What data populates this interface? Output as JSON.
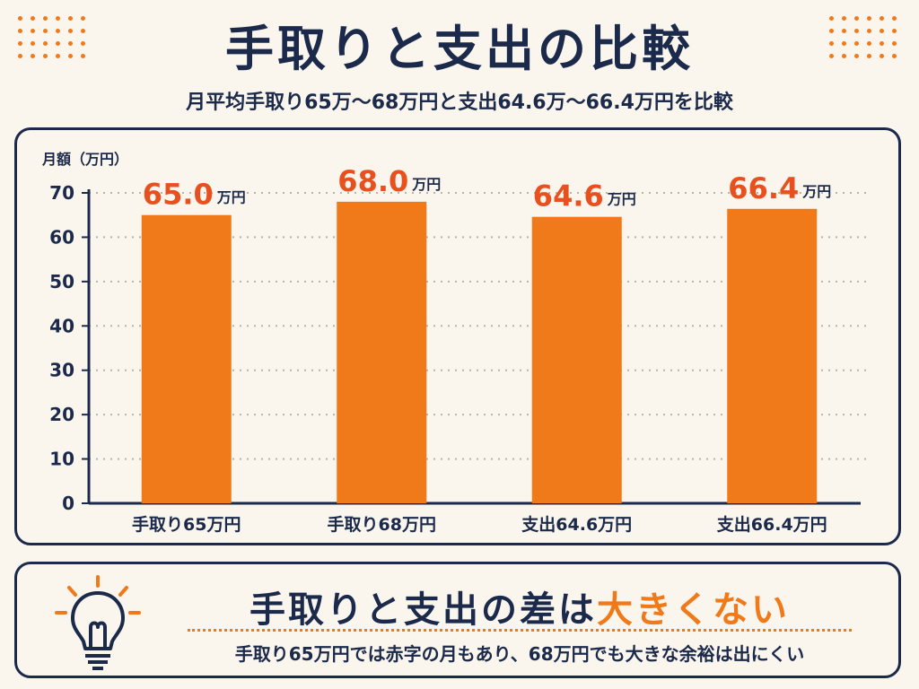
{
  "header": {
    "title": "手取りと支出の比較",
    "subtitle": "月平均手取り65万〜68万円と支出64.6万〜66.4万円を比較"
  },
  "colors": {
    "bar": "#f07a1a",
    "label": "#e8501e",
    "navy": "#1b2a4a",
    "background": "#faf6ee"
  },
  "chart_data": {
    "type": "bar",
    "ylabel": "月額（万円）",
    "ylim": [
      0,
      70
    ],
    "yticks": [
      0,
      10,
      20,
      30,
      40,
      50,
      60,
      70
    ],
    "grid": true,
    "categories": [
      "手取り65万円",
      "手取り68万円",
      "支出64.6万円",
      "支出66.4万円"
    ],
    "values": [
      65.0,
      68.0,
      64.6,
      66.4
    ],
    "value_labels": [
      "65.0",
      "68.0",
      "64.6",
      "66.4"
    ],
    "value_unit": "万円"
  },
  "summary": {
    "headline_main": "手取りと支出の差は",
    "headline_accent": "大きくない",
    "note": "手取り65万円では赤字の月もあり、68万円でも大きな余裕は出にくい",
    "icon": "lightbulb-icon"
  }
}
